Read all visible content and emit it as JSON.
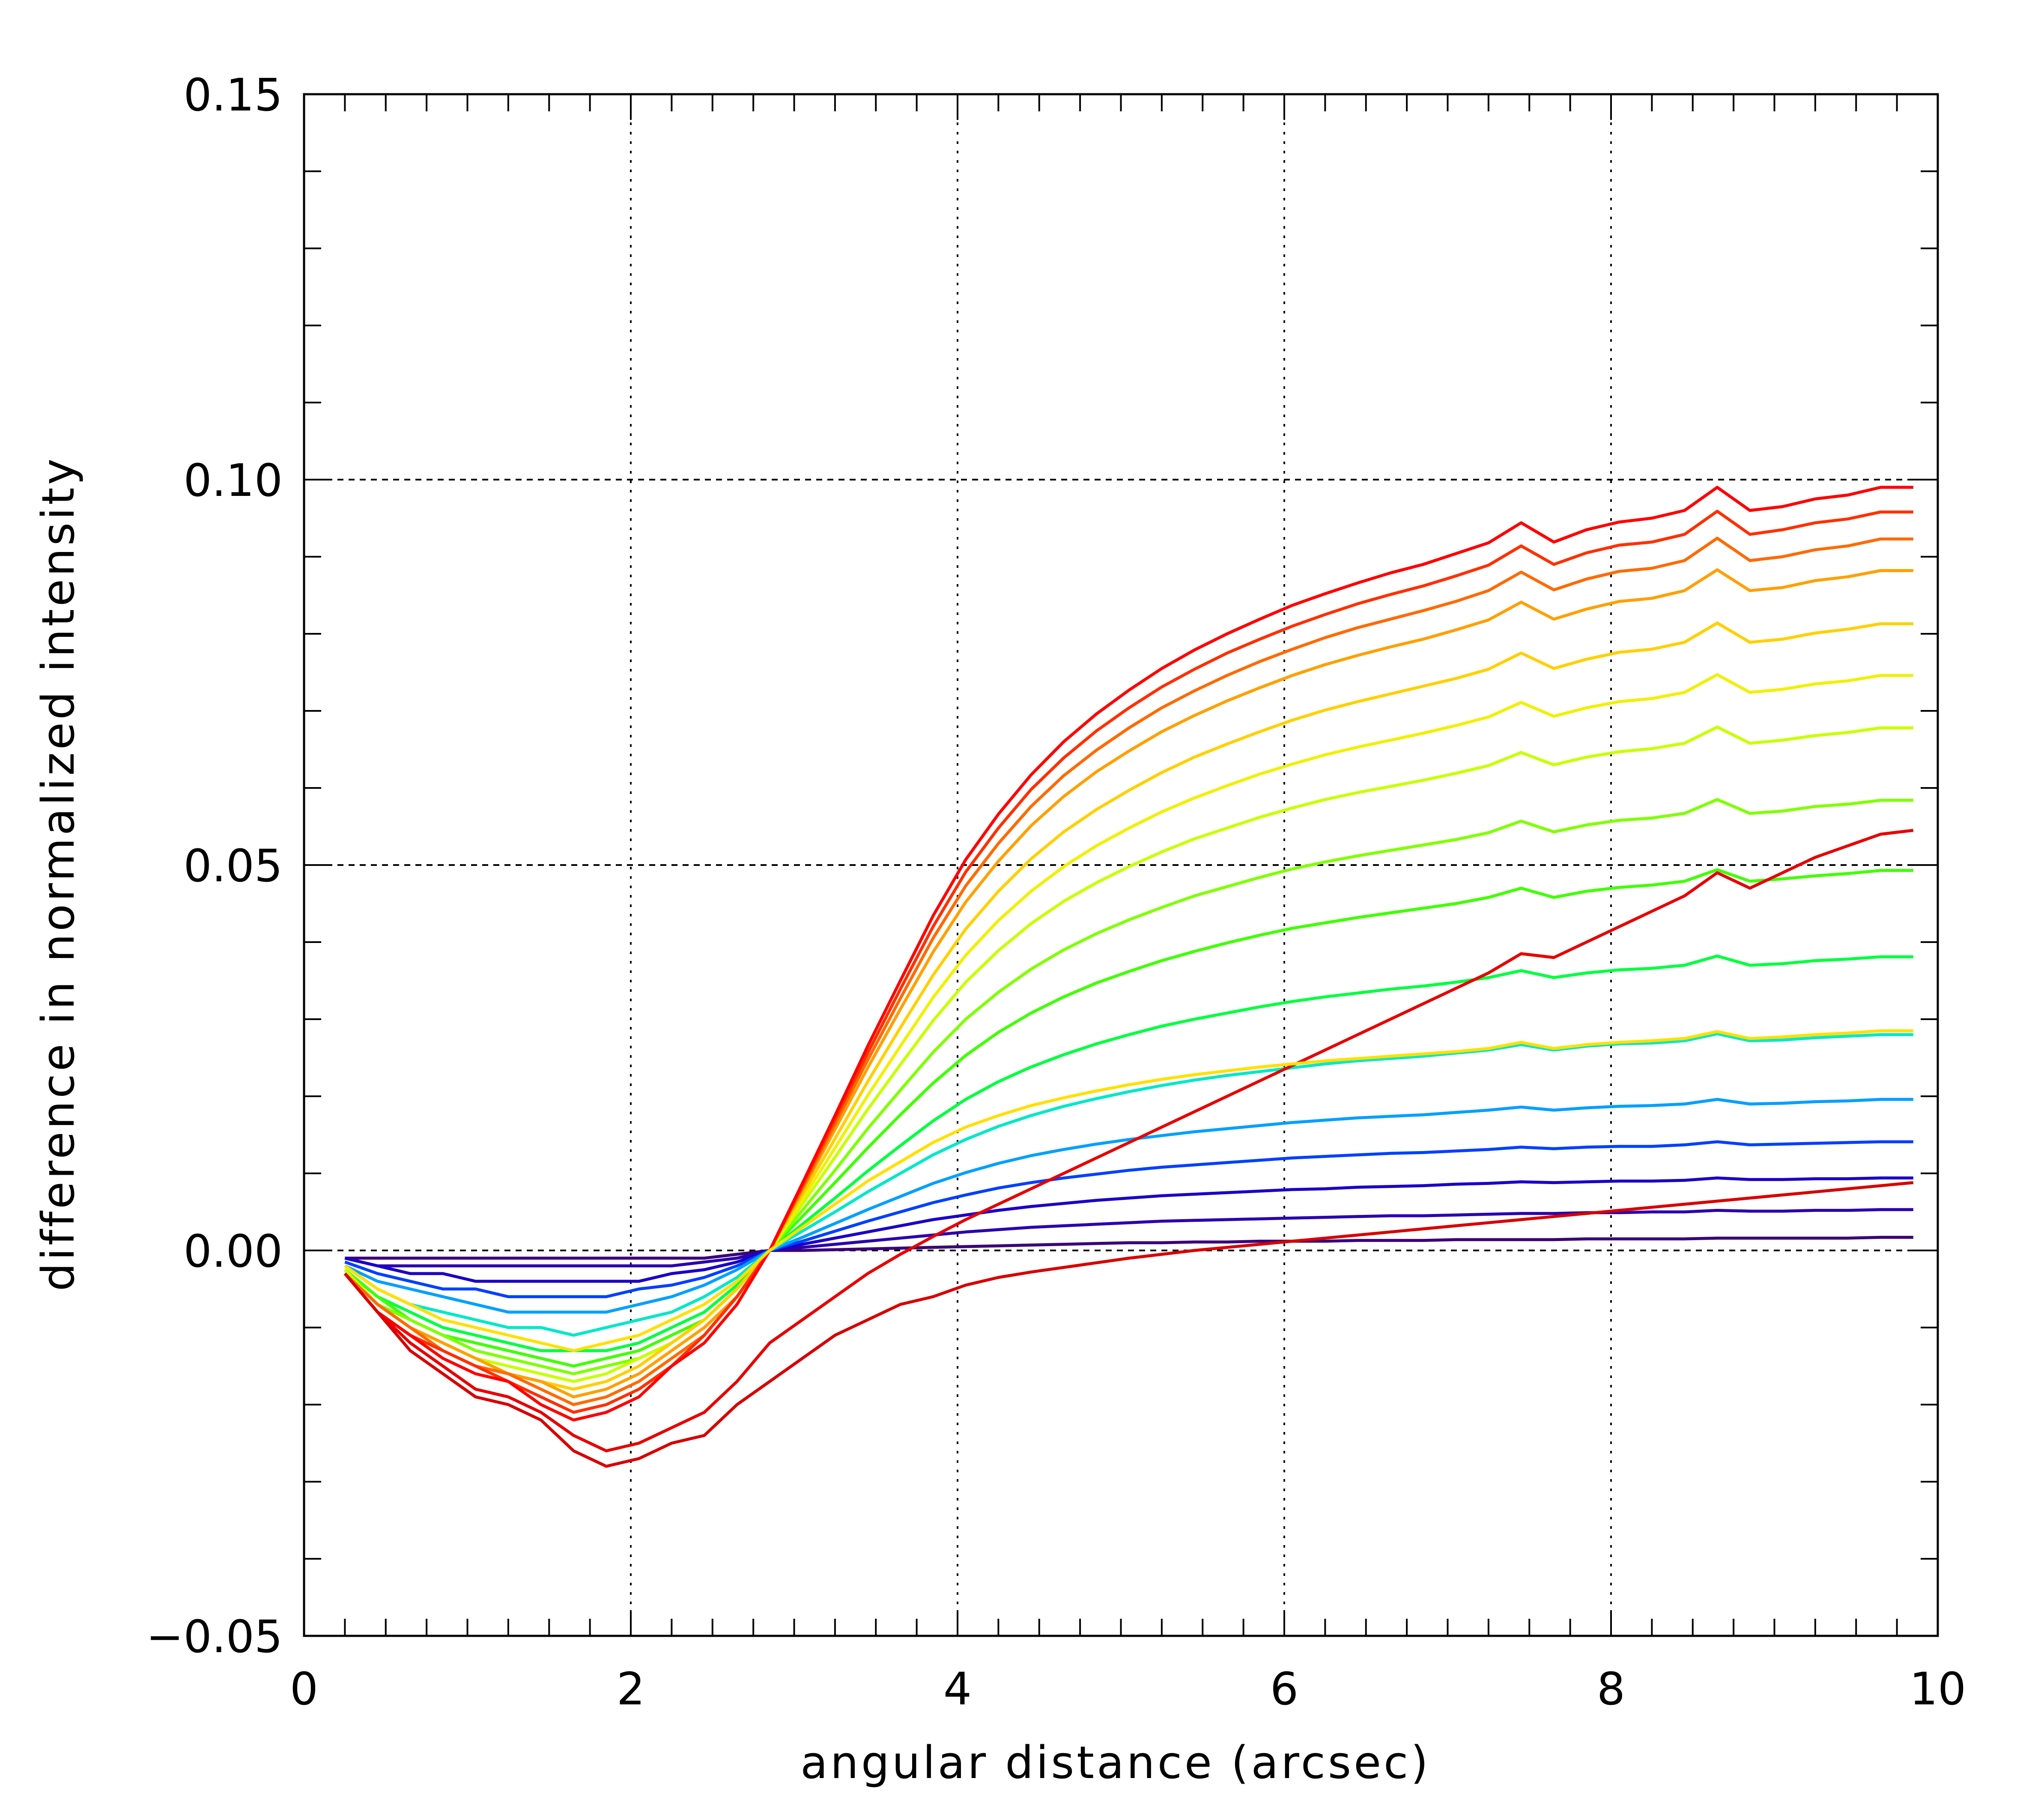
{
  "chart_data": {
    "type": "line",
    "title": "",
    "xlabel": "angular distance (arcsec)",
    "ylabel": "difference in normalized intensity",
    "xlim": [
      0,
      10
    ],
    "ylim": [
      -0.05,
      0.15
    ],
    "x_ticks": [
      0,
      2,
      4,
      6,
      8,
      10
    ],
    "x_tick_labels": [
      "0",
      "2",
      "4",
      "6",
      "8",
      "10"
    ],
    "y_ticks": [
      -0.05,
      0.0,
      0.05,
      0.1,
      0.15
    ],
    "y_tick_labels": [
      "−0.05",
      "0.00",
      "0.05",
      "0.10",
      "0.15"
    ],
    "grid": {
      "vertical_dotted_at_x": [
        2,
        4,
        6,
        8
      ],
      "horizontal_dashed_at_y": [
        0.0,
        0.05,
        0.1
      ]
    },
    "legend": "none",
    "colormap": "rainbow (purple to red)",
    "colormap_stops": [
      "#3b0078",
      "#1a00c8",
      "#0040ff",
      "#00a0ff",
      "#00e8c8",
      "#00ff40",
      "#80ff00",
      "#f0f000",
      "#ffa000",
      "#ff3000",
      "#ff0000"
    ],
    "x": [
      0.25,
      0.45,
      0.65,
      0.85,
      1.05,
      1.25,
      1.45,
      1.65,
      1.85,
      2.05,
      2.25,
      2.45,
      2.65,
      2.85,
      3.05,
      3.25,
      3.45,
      3.65,
      3.85,
      4.05,
      4.25,
      4.45,
      4.65,
      4.85,
      5.05,
      5.25,
      5.45,
      5.65,
      5.85,
      6.05,
      6.25,
      6.45,
      6.65,
      6.85,
      7.05,
      7.25,
      7.45,
      7.65,
      7.85,
      8.05,
      8.25,
      8.45,
      8.65,
      8.85,
      9.05,
      9.25,
      9.45,
      9.65,
      9.85
    ],
    "series": [
      {
        "color": "#3b0078",
        "values": [
          -0.001,
          -0.001,
          -0.001,
          -0.001,
          -0.001,
          -0.001,
          -0.001,
          -0.001,
          -0.001,
          -0.001,
          -0.001,
          -0.001,
          -0.0005,
          0.0,
          0.0,
          0.0001,
          0.0002,
          0.0003,
          0.0004,
          0.0005,
          0.0006,
          0.0007,
          0.0008,
          0.0009,
          0.001,
          0.001,
          0.0011,
          0.0011,
          0.0012,
          0.0012,
          0.0012,
          0.0013,
          0.0013,
          0.0013,
          0.0014,
          0.0014,
          0.0014,
          0.0014,
          0.0015,
          0.0015,
          0.0015,
          0.0015,
          0.0016,
          0.0016,
          0.0016,
          0.0016,
          0.0016,
          0.0017,
          0.0017
        ]
      },
      {
        "color": "#2a00b0",
        "values": [
          -0.001,
          -0.002,
          -0.002,
          -0.002,
          -0.002,
          -0.002,
          -0.002,
          -0.002,
          -0.002,
          -0.002,
          -0.002,
          -0.0015,
          -0.001,
          0.0,
          0.0004,
          0.0008,
          0.0012,
          0.0016,
          0.002,
          0.0024,
          0.0027,
          0.003,
          0.0032,
          0.0034,
          0.0036,
          0.0038,
          0.0039,
          0.004,
          0.0041,
          0.0042,
          0.0043,
          0.0044,
          0.0045,
          0.0045,
          0.0046,
          0.0047,
          0.0048,
          0.0048,
          0.0049,
          0.0049,
          0.005,
          0.005,
          0.0052,
          0.0051,
          0.0051,
          0.0052,
          0.0052,
          0.0053,
          0.0053
        ]
      },
      {
        "color": "#1a00c8",
        "values": [
          -0.001,
          -0.002,
          -0.003,
          -0.003,
          -0.004,
          -0.004,
          -0.004,
          -0.004,
          -0.004,
          -0.004,
          -0.003,
          -0.0025,
          -0.0015,
          0.0,
          0.0008,
          0.0016,
          0.0024,
          0.0032,
          0.004,
          0.0046,
          0.0052,
          0.0057,
          0.0061,
          0.0065,
          0.0068,
          0.0071,
          0.0073,
          0.0075,
          0.0077,
          0.0079,
          0.008,
          0.0082,
          0.0083,
          0.0084,
          0.0086,
          0.0087,
          0.0089,
          0.0088,
          0.0089,
          0.009,
          0.009,
          0.0091,
          0.0094,
          0.0092,
          0.0092,
          0.0093,
          0.0093,
          0.0094,
          0.0094
        ]
      },
      {
        "color": "#0040ff",
        "values": [
          -0.0015,
          -0.003,
          -0.004,
          -0.005,
          -0.005,
          -0.006,
          -0.006,
          -0.006,
          -0.006,
          -0.005,
          -0.0045,
          -0.0035,
          -0.002,
          0.0,
          0.0012,
          0.0025,
          0.0038,
          0.005,
          0.0062,
          0.0072,
          0.0081,
          0.0088,
          0.0094,
          0.0099,
          0.0104,
          0.0108,
          0.0111,
          0.0114,
          0.0117,
          0.012,
          0.0122,
          0.0124,
          0.0126,
          0.0127,
          0.0129,
          0.0131,
          0.0134,
          0.0132,
          0.0134,
          0.0135,
          0.0135,
          0.0137,
          0.0141,
          0.0137,
          0.0138,
          0.0139,
          0.014,
          0.0141,
          0.0141
        ]
      },
      {
        "color": "#00a0ff",
        "values": [
          -0.002,
          -0.004,
          -0.005,
          -0.006,
          -0.007,
          -0.008,
          -0.008,
          -0.008,
          -0.008,
          -0.007,
          -0.006,
          -0.0045,
          -0.0025,
          0.0,
          0.0017,
          0.0035,
          0.0053,
          0.007,
          0.0087,
          0.0101,
          0.0113,
          0.0123,
          0.0131,
          0.0138,
          0.0144,
          0.0149,
          0.0154,
          0.0158,
          0.0162,
          0.0166,
          0.0169,
          0.0172,
          0.0174,
          0.0176,
          0.0179,
          0.0182,
          0.0186,
          0.0182,
          0.0185,
          0.0187,
          0.0188,
          0.019,
          0.0196,
          0.019,
          0.0191,
          0.0193,
          0.0194,
          0.0196,
          0.0196
        ]
      },
      {
        "color": "#00e8c8",
        "values": [
          -0.002,
          -0.005,
          -0.007,
          -0.008,
          -0.009,
          -0.01,
          -0.01,
          -0.011,
          -0.01,
          -0.009,
          -0.008,
          -0.006,
          -0.0035,
          0.0,
          0.0025,
          0.005,
          0.0076,
          0.01,
          0.0124,
          0.0144,
          0.0161,
          0.0175,
          0.0187,
          0.0197,
          0.0206,
          0.0214,
          0.0221,
          0.0227,
          0.0232,
          0.0237,
          0.0242,
          0.0246,
          0.0249,
          0.0252,
          0.0256,
          0.026,
          0.0267,
          0.026,
          0.0265,
          0.0268,
          0.0269,
          0.0272,
          0.0281,
          0.0272,
          0.0273,
          0.0276,
          0.0278,
          0.028,
          0.028
        ]
      },
      {
        "color": "#00ff40",
        "values": [
          -0.0025,
          -0.006,
          -0.008,
          -0.01,
          -0.011,
          -0.012,
          -0.013,
          -0.013,
          -0.013,
          -0.012,
          -0.01,
          -0.008,
          -0.0045,
          0.0,
          0.0034,
          0.0068,
          0.0103,
          0.0136,
          0.0168,
          0.0196,
          0.0219,
          0.0238,
          0.0254,
          0.0268,
          0.028,
          0.0291,
          0.03,
          0.0308,
          0.0316,
          0.0323,
          0.0329,
          0.0334,
          0.0339,
          0.0343,
          0.0348,
          0.0354,
          0.0363,
          0.0354,
          0.036,
          0.0364,
          0.0366,
          0.037,
          0.0382,
          0.037,
          0.0372,
          0.0376,
          0.0378,
          0.0381,
          0.0381
        ]
      },
      {
        "color": "#40ff00",
        "values": [
          -0.0025,
          -0.006,
          -0.009,
          -0.011,
          -0.012,
          -0.013,
          -0.014,
          -0.015,
          -0.014,
          -0.013,
          -0.011,
          -0.009,
          -0.005,
          0.0,
          0.0044,
          0.0088,
          0.0133,
          0.0176,
          0.0217,
          0.0253,
          0.0283,
          0.0308,
          0.0329,
          0.0347,
          0.0362,
          0.0376,
          0.0388,
          0.0399,
          0.0409,
          0.0418,
          0.0425,
          0.0432,
          0.0438,
          0.0444,
          0.045,
          0.0458,
          0.047,
          0.0458,
          0.0466,
          0.0471,
          0.0474,
          0.0479,
          0.0494,
          0.0479,
          0.0482,
          0.0486,
          0.0489,
          0.0493,
          0.0493
        ]
      },
      {
        "color": "#80ff00",
        "values": [
          -0.0025,
          -0.007,
          -0.009,
          -0.011,
          -0.013,
          -0.014,
          -0.015,
          -0.016,
          -0.015,
          -0.014,
          -0.012,
          -0.009,
          -0.005,
          0.0,
          0.0052,
          0.0104,
          0.0158,
          0.0208,
          0.0257,
          0.03,
          0.0335,
          0.0365,
          0.039,
          0.0411,
          0.0429,
          0.0445,
          0.046,
          0.0472,
          0.0484,
          0.0495,
          0.0504,
          0.0512,
          0.0519,
          0.0526,
          0.0533,
          0.0542,
          0.0557,
          0.0543,
          0.0552,
          0.0558,
          0.0561,
          0.0567,
          0.0585,
          0.0567,
          0.057,
          0.0576,
          0.0579,
          0.0584,
          0.0584
        ]
      },
      {
        "color": "#c8ff00",
        "values": [
          -0.0025,
          -0.007,
          -0.01,
          -0.012,
          -0.014,
          -0.015,
          -0.016,
          -0.017,
          -0.016,
          -0.014,
          -0.012,
          -0.009,
          -0.005,
          0.0,
          0.006,
          0.0121,
          0.0183,
          0.0241,
          0.0298,
          0.0348,
          0.0389,
          0.0424,
          0.0453,
          0.0477,
          0.0498,
          0.0517,
          0.0534,
          0.0548,
          0.0562,
          0.0574,
          0.0585,
          0.0594,
          0.0602,
          0.061,
          0.0619,
          0.0629,
          0.0646,
          0.063,
          0.064,
          0.0647,
          0.0651,
          0.0658,
          0.0679,
          0.0658,
          0.0662,
          0.0668,
          0.0672,
          0.0678,
          0.0678
        ]
      },
      {
        "color": "#f0f000",
        "values": [
          -0.003,
          -0.007,
          -0.01,
          -0.012,
          -0.014,
          -0.016,
          -0.017,
          -0.018,
          -0.017,
          -0.015,
          -0.012,
          -0.009,
          -0.005,
          0.0,
          0.0066,
          0.0133,
          0.0201,
          0.0265,
          0.0328,
          0.0383,
          0.0428,
          0.0466,
          0.0498,
          0.0525,
          0.0548,
          0.0569,
          0.0587,
          0.0603,
          0.0618,
          0.0631,
          0.0643,
          0.0653,
          0.0662,
          0.0671,
          0.0681,
          0.0692,
          0.0711,
          0.0693,
          0.0704,
          0.0712,
          0.0716,
          0.0724,
          0.0747,
          0.0724,
          0.0728,
          0.0735,
          0.0739,
          0.0746,
          0.0746
        ]
      },
      {
        "color": "#ffd000",
        "values": [
          -0.003,
          -0.007,
          -0.01,
          -0.012,
          -0.014,
          -0.016,
          -0.017,
          -0.018,
          -0.017,
          -0.015,
          -0.012,
          -0.009,
          -0.005,
          0.0,
          0.0072,
          0.0145,
          0.0219,
          0.0289,
          0.0357,
          0.0417,
          0.0466,
          0.0508,
          0.0543,
          0.0572,
          0.0597,
          0.062,
          0.064,
          0.0657,
          0.0673,
          0.0688,
          0.0701,
          0.0712,
          0.0722,
          0.0732,
          0.0742,
          0.0754,
          0.0775,
          0.0755,
          0.0767,
          0.0776,
          0.078,
          0.0789,
          0.0814,
          0.0789,
          0.0793,
          0.0801,
          0.0806,
          0.0813,
          0.0813
        ]
      },
      {
        "color": "#ffa000",
        "values": [
          -0.003,
          -0.007,
          -0.01,
          -0.012,
          -0.014,
          -0.016,
          -0.017,
          -0.019,
          -0.018,
          -0.016,
          -0.013,
          -0.01,
          -0.006,
          0.0,
          0.0078,
          0.0157,
          0.0237,
          0.0313,
          0.0387,
          0.0452,
          0.0505,
          0.0551,
          0.0589,
          0.0621,
          0.0648,
          0.0673,
          0.0694,
          0.0713,
          0.073,
          0.0746,
          0.076,
          0.0772,
          0.0783,
          0.0793,
          0.0805,
          0.0818,
          0.0841,
          0.0819,
          0.0832,
          0.0842,
          0.0846,
          0.0856,
          0.0883,
          0.0856,
          0.086,
          0.0869,
          0.0874,
          0.0882,
          0.0882
        ]
      },
      {
        "color": "#ff6a00",
        "values": [
          -0.003,
          -0.007,
          -0.01,
          -0.013,
          -0.015,
          -0.016,
          -0.018,
          -0.02,
          -0.019,
          -0.017,
          -0.014,
          -0.011,
          -0.006,
          0.0,
          0.0081,
          0.0164,
          0.0247,
          0.0327,
          0.0405,
          0.0473,
          0.0528,
          0.0576,
          0.0616,
          0.0649,
          0.0678,
          0.0704,
          0.0726,
          0.0746,
          0.0764,
          0.078,
          0.0795,
          0.0808,
          0.0819,
          0.083,
          0.0842,
          0.0856,
          0.088,
          0.0857,
          0.0871,
          0.0881,
          0.0885,
          0.0895,
          0.0924,
          0.0895,
          0.09,
          0.0909,
          0.0914,
          0.0923,
          0.0923
        ]
      },
      {
        "color": "#ff3000",
        "values": [
          -0.003,
          -0.008,
          -0.011,
          -0.013,
          -0.015,
          -0.017,
          -0.019,
          -0.021,
          -0.02,
          -0.018,
          -0.015,
          -0.011,
          -0.006,
          0.0,
          0.0084,
          0.017,
          0.0256,
          0.0339,
          0.042,
          0.0491,
          0.0548,
          0.0598,
          0.0639,
          0.0674,
          0.0704,
          0.0731,
          0.0754,
          0.0775,
          0.0793,
          0.081,
          0.0825,
          0.0839,
          0.0851,
          0.0862,
          0.0875,
          0.0889,
          0.0914,
          0.089,
          0.0905,
          0.0915,
          0.0919,
          0.0929,
          0.0959,
          0.0929,
          0.0935,
          0.0944,
          0.0949,
          0.0958,
          0.0958
        ]
      },
      {
        "color": "#ff0000",
        "values": [
          -0.003,
          -0.008,
          -0.011,
          -0.014,
          -0.016,
          -0.017,
          -0.02,
          -0.022,
          -0.021,
          -0.019,
          -0.015,
          -0.012,
          -0.007,
          0.0,
          0.0087,
          0.0175,
          0.0265,
          0.035,
          0.0434,
          0.0507,
          0.0566,
          0.0617,
          0.066,
          0.0696,
          0.0727,
          0.0755,
          0.0779,
          0.08,
          0.0819,
          0.0837,
          0.0852,
          0.0866,
          0.0879,
          0.089,
          0.0904,
          0.0918,
          0.0944,
          0.0919,
          0.0935,
          0.0945,
          0.095,
          0.096,
          0.099,
          0.096,
          0.0965,
          0.0975,
          0.098,
          0.099,
          0.099
        ]
      },
      {
        "color": "#e80000",
        "values": [
          -0.003,
          -0.008,
          -0.012,
          -0.015,
          -0.018,
          -0.019,
          -0.021,
          -0.024,
          -0.026,
          -0.025,
          -0.023,
          -0.021,
          -0.017,
          -0.012,
          -0.009,
          -0.006,
          -0.003,
          -0.0005,
          0.0018,
          0.004,
          0.006,
          0.008,
          0.01,
          0.012,
          0.014,
          0.016,
          0.018,
          0.02,
          0.022,
          0.024,
          0.026,
          0.028,
          0.03,
          0.032,
          0.034,
          0.036,
          0.0385,
          0.038,
          0.04,
          0.042,
          0.044,
          0.046,
          0.049,
          0.047,
          0.049,
          0.051,
          0.0525,
          0.054,
          0.0545
        ]
      },
      {
        "color": "#d80000",
        "values": [
          -0.003,
          -0.008,
          -0.013,
          -0.016,
          -0.019,
          -0.02,
          -0.022,
          -0.026,
          -0.028,
          -0.027,
          -0.025,
          -0.024,
          -0.02,
          -0.017,
          -0.014,
          -0.011,
          -0.009,
          -0.007,
          -0.006,
          -0.0045,
          -0.0035,
          -0.0028,
          -0.0022,
          -0.0016,
          -0.001,
          -0.0005,
          0.0,
          0.0004,
          0.0008,
          0.0012,
          0.0016,
          0.002,
          0.0024,
          0.0028,
          0.0032,
          0.0036,
          0.004,
          0.0044,
          0.0048,
          0.0052,
          0.0056,
          0.006,
          0.0064,
          0.0068,
          0.0072,
          0.0076,
          0.008,
          0.0084,
          0.0088
        ]
      },
      {
        "color": "#ffe000",
        "values": [
          -0.002,
          -0.005,
          -0.007,
          -0.009,
          -0.01,
          -0.011,
          -0.012,
          -0.013,
          -0.012,
          -0.011,
          -0.009,
          -0.007,
          -0.004,
          0.0,
          0.003,
          0.006,
          0.009,
          0.0115,
          0.014,
          0.016,
          0.0175,
          0.0188,
          0.0198,
          0.0207,
          0.0215,
          0.0222,
          0.0228,
          0.0233,
          0.0238,
          0.0242,
          0.0246,
          0.0249,
          0.0252,
          0.0255,
          0.0258,
          0.0262,
          0.027,
          0.0262,
          0.0267,
          0.027,
          0.0272,
          0.0275,
          0.0284,
          0.0275,
          0.0277,
          0.028,
          0.0282,
          0.0285,
          0.0285
        ]
      }
    ]
  }
}
